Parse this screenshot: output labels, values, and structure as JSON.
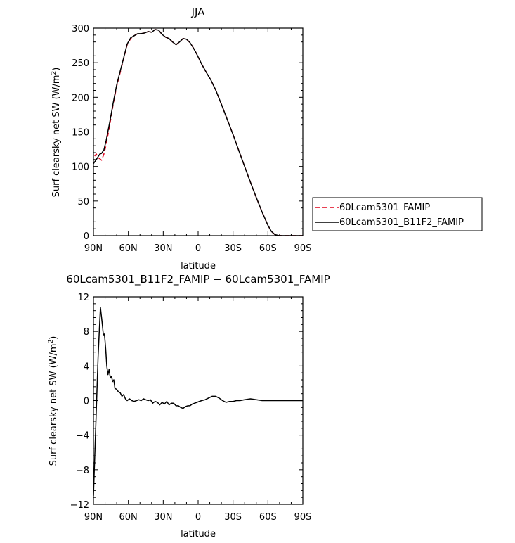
{
  "chart_data": [
    {
      "type": "line",
      "title": "JJA",
      "xlabel": "latitude",
      "ylabel": "Surf clearsky net SW (W/m",
      "ylabel_sup": "2",
      "ylabel_end": ")",
      "xlim": [
        90,
        -90
      ],
      "ylim": [
        0,
        300
      ],
      "xticks": [
        90,
        60,
        30,
        0,
        -30,
        -60,
        -90
      ],
      "xtick_labels": [
        "90N",
        "60N",
        "30N",
        "0",
        "30S",
        "60S",
        "90S"
      ],
      "yticks": [
        0,
        50,
        100,
        150,
        200,
        250,
        300
      ],
      "ytick_labels": [
        "0",
        "50",
        "100",
        "150",
        "200",
        "250",
        "300"
      ],
      "legend_position": "right",
      "series": [
        {
          "name": "60Lcam5301_FAMIP",
          "color": "#e0001a",
          "dash": "dashed",
          "x": [
            89,
            87.5,
            86,
            84.5,
            83,
            81,
            79,
            76,
            73,
            70,
            67,
            64,
            61,
            58,
            55,
            52,
            49,
            46,
            43,
            40,
            37,
            34,
            31,
            28,
            25,
            22,
            19,
            16,
            13,
            10,
            7,
            4,
            1,
            -3,
            -7,
            -11,
            -15,
            -20,
            -25,
            -30,
            -35,
            -40,
            -45,
            -50,
            -55,
            -60,
            -63,
            -66,
            -69,
            -72,
            -75,
            -80,
            -85,
            -90
          ],
          "y": [
            115,
            118,
            113,
            111,
            109,
            118,
            132,
            160,
            190,
            216,
            236,
            256,
            276,
            285,
            289,
            292,
            292,
            293,
            295,
            294,
            298,
            297,
            291,
            287,
            285,
            280,
            276,
            280,
            285,
            284,
            279,
            271,
            262,
            248,
            236,
            225,
            211,
            190,
            168,
            146,
            123,
            100,
            77,
            55,
            34,
            15,
            6,
            1.5,
            0.3,
            0,
            0,
            0,
            0,
            0
          ]
        },
        {
          "name": "60Lcam5301_B11F2_FAMIP",
          "color": "#000000",
          "dash": "solid",
          "x": [
            90,
            87.5,
            86,
            84.5,
            83,
            81,
            79,
            76,
            73,
            70,
            67,
            64,
            61,
            58,
            55,
            52,
            49,
            46,
            43,
            40,
            37,
            34,
            31,
            28,
            25,
            22,
            19,
            16,
            13,
            10,
            7,
            4,
            1,
            -3,
            -7,
            -11,
            -15,
            -20,
            -25,
            -30,
            -35,
            -40,
            -45,
            -50,
            -55,
            -60,
            -63,
            -66,
            -69,
            -72,
            -75,
            -80,
            -85,
            -90
          ],
          "y": [
            104,
            110,
            114,
            118,
            119,
            124,
            138,
            164,
            192,
            218,
            238,
            257,
            277,
            286,
            289,
            292,
            292,
            293,
            295,
            294,
            298,
            297,
            291,
            287,
            285,
            280,
            276,
            280,
            285,
            284,
            279,
            271,
            262,
            248,
            236,
            225,
            211,
            190,
            168,
            146,
            123,
            100,
            77,
            55,
            34,
            15,
            6,
            1.5,
            0.3,
            0,
            0,
            0,
            0,
            0
          ]
        }
      ]
    },
    {
      "type": "line",
      "title": "60Lcam5301_B11F2_FAMIP − 60Lcam5301_FAMIP",
      "xlabel": "latitude",
      "ylabel": "Surf clearsky net SW (W/m",
      "ylabel_sup": "2",
      "ylabel_end": ")",
      "xlim": [
        90,
        -90
      ],
      "ylim": [
        -12,
        12
      ],
      "xticks": [
        90,
        60,
        30,
        0,
        -30,
        -60,
        -90
      ],
      "xtick_labels": [
        "90N",
        "60N",
        "30N",
        "0",
        "30S",
        "60S",
        "90S"
      ],
      "yticks": [
        12,
        8,
        4,
        0,
        -4,
        -8,
        -12
      ],
      "ytick_labels": [
        "12",
        "8",
        "4",
        "0",
        "−4",
        "−8",
        "−12"
      ],
      "series": [
        {
          "color": "#000000",
          "dash": "solid",
          "x": [
            90,
            88,
            86,
            84,
            82.5,
            81.5,
            80.5,
            79.5,
            78.5,
            77.5,
            76.5,
            75.5,
            74.5,
            73.5,
            72.5,
            71.5,
            70,
            68.5,
            67,
            65.5,
            64,
            62.5,
            61,
            59,
            57,
            55,
            53,
            51,
            49,
            47,
            45,
            43,
            41,
            39,
            37,
            35,
            33,
            31,
            29,
            27,
            25,
            23,
            21,
            19,
            17,
            15,
            13,
            11,
            9,
            7,
            5,
            3,
            1,
            -1,
            -3,
            -6,
            -9,
            -12,
            -15,
            -18,
            -21,
            -24,
            -27,
            -30,
            -33,
            -36,
            -40,
            -45,
            -50,
            -55,
            -60,
            -70,
            -80,
            -90
          ],
          "y": [
            -11,
            -3,
            5,
            10.8,
            9,
            7.6,
            7.7,
            6,
            4,
            3,
            3.6,
            2.6,
            2.8,
            2.2,
            2.4,
            1.4,
            1.3,
            1.0,
            0.9,
            0.5,
            0.7,
            0.2,
            0.0,
            0.2,
            0.0,
            -0.1,
            0.0,
            0.1,
            0.0,
            0.2,
            0.1,
            0.0,
            0.1,
            -0.3,
            -0.1,
            -0.2,
            -0.5,
            -0.2,
            -0.4,
            -0.1,
            -0.5,
            -0.3,
            -0.3,
            -0.6,
            -0.6,
            -0.8,
            -0.9,
            -0.7,
            -0.6,
            -0.6,
            -0.4,
            -0.3,
            -0.2,
            -0.1,
            0.0,
            0.1,
            0.3,
            0.5,
            0.5,
            0.3,
            0.0,
            -0.2,
            -0.1,
            -0.1,
            0.0,
            0.0,
            0.1,
            0.2,
            0.1,
            0.0,
            0.0,
            0.0,
            0.0,
            0.0
          ]
        }
      ]
    }
  ]
}
